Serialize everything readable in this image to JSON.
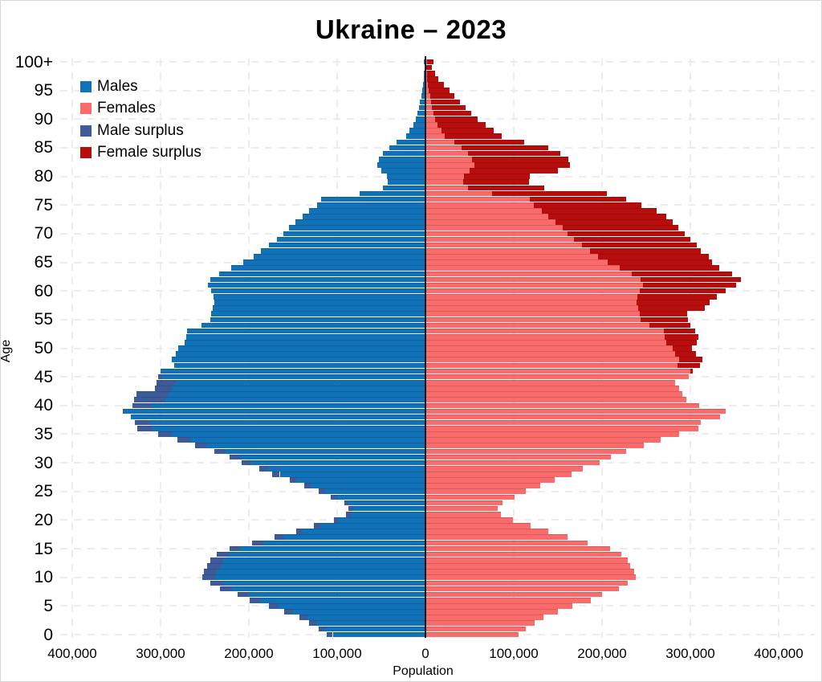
{
  "title": "Ukraine – 2023",
  "axes": {
    "x_label": "Population",
    "y_label": "Age",
    "x_ticks": [
      "400,000",
      "300,000",
      "200,000",
      "100,000",
      "0",
      "100,000",
      "200,000",
      "300,000",
      "400,000"
    ],
    "y_ticks": [
      "0",
      "5",
      "10",
      "15",
      "20",
      "25",
      "30",
      "35",
      "40",
      "45",
      "50",
      "55",
      "60",
      "65",
      "70",
      "75",
      "80",
      "85",
      "90",
      "95",
      "100+"
    ]
  },
  "legend": {
    "items": [
      {
        "label": "Males",
        "color": "#1172b8"
      },
      {
        "label": "Females",
        "color": "#fa6b6b"
      },
      {
        "label": "Male surplus",
        "color": "#3d5a99"
      },
      {
        "label": "Female surplus",
        "color": "#b80d0d"
      }
    ]
  },
  "chart_data": {
    "type": "bar",
    "subtype": "population-pyramid",
    "title": "Ukraine – 2023",
    "xlabel": "Population",
    "ylabel": "Age",
    "grid": true,
    "legend_position": "upper-left",
    "xlim": [
      -400000,
      400000
    ],
    "x_tick_values": [
      400000,
      300000,
      200000,
      100000,
      0,
      100000,
      200000,
      300000,
      400000
    ],
    "age_min": 0,
    "age_max": 100,
    "age_top_label": "100+",
    "colors": {
      "males": "#1172b8",
      "females": "#fa6b6b",
      "male_surplus": "#3d5a99",
      "female_surplus": "#b80d0d"
    },
    "note": "Left bars = males, right bars = females; darker tip = surplus of that sex over the other at that age.",
    "series": [
      {
        "name": "Males",
        "values": [
          112000,
          121000,
          132000,
          143000,
          160000,
          177000,
          199000,
          213000,
          233000,
          244000,
          253000,
          251000,
          247000,
          244000,
          236000,
          222000,
          196000,
          171000,
          146000,
          126000,
          104000,
          90000,
          87000,
          92000,
          107000,
          121000,
          137000,
          154000,
          174000,
          188000,
          208000,
          222000,
          239000,
          261000,
          281000,
          303000,
          326000,
          329000,
          334000,
          343000,
          332000,
          330000,
          327000,
          306000,
          305000,
          303000,
          300000,
          285000,
          287000,
          283000,
          280000,
          273000,
          271000,
          270000,
          254000,
          244000,
          243000,
          241000,
          239000,
          240000,
          243000,
          246000,
          244000,
          234000,
          220000,
          206000,
          195000,
          186000,
          177000,
          168000,
          161000,
          155000,
          147000,
          139000,
          132000,
          123000,
          118000,
          75000,
          48000,
          43000,
          44000,
          50000,
          55000,
          53000,
          48000,
          41000,
          33000,
          22000,
          18000,
          14000,
          11000,
          9000,
          7500,
          6000,
          5000,
          4000,
          3000,
          2200,
          1600,
          1100,
          1500
        ]
      },
      {
        "name": "Females",
        "values": [
          105000,
          114000,
          124000,
          134000,
          150000,
          166000,
          187000,
          200000,
          219000,
          229000,
          238000,
          236000,
          232000,
          229000,
          222000,
          209000,
          184000,
          161000,
          139000,
          119000,
          99000,
          85000,
          82000,
          87000,
          101000,
          114000,
          130000,
          146000,
          165000,
          178000,
          197000,
          210000,
          227000,
          247000,
          266000,
          287000,
          309000,
          312000,
          334000,
          340000,
          310000,
          295000,
          291000,
          287000,
          283000,
          298000,
          303000,
          311000,
          314000,
          306000,
          302000,
          307000,
          309000,
          305000,
          300000,
          297000,
          296000,
          316000,
          322000,
          330000,
          340000,
          352000,
          357000,
          347000,
          333000,
          325000,
          321000,
          312000,
          307000,
          300000,
          294000,
          286000,
          280000,
          273000,
          262000,
          245000,
          227000,
          205000,
          135000,
          117000,
          118000,
          150000,
          164000,
          162000,
          153000,
          139000,
          112000,
          86000,
          77000,
          68000,
          59000,
          52000,
          45000,
          39000,
          33000,
          27000,
          21000,
          15000,
          11000,
          7000,
          9000
        ]
      }
    ]
  }
}
